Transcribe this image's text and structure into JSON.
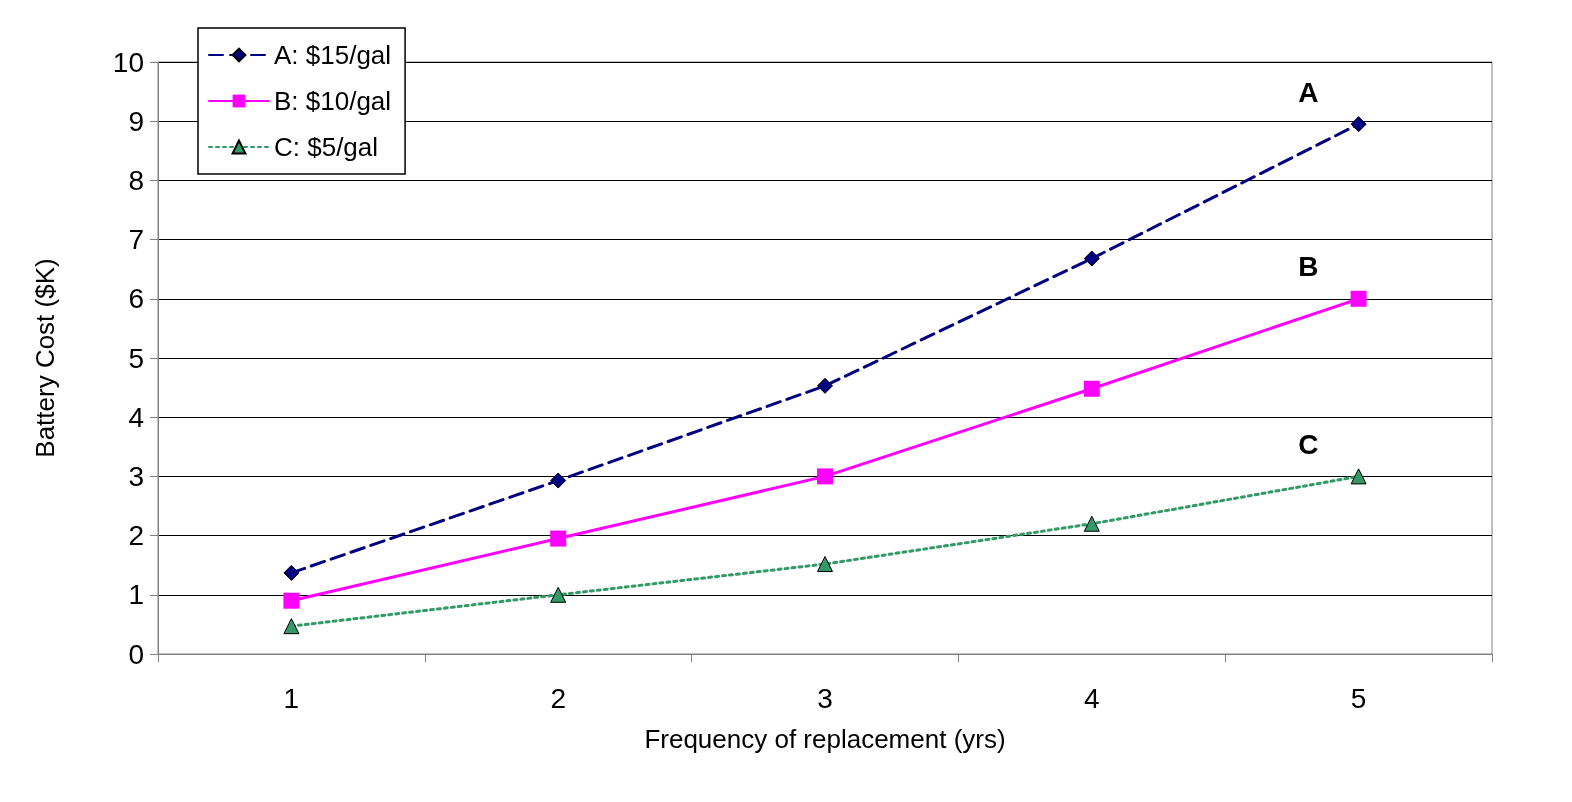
{
  "chart_data": {
    "type": "line",
    "xlabel": "Frequency of replacement (yrs)",
    "ylabel": "Battery Cost ($K)",
    "categories": [
      "1",
      "2",
      "3",
      "4",
      "5"
    ],
    "series": [
      {
        "name": "A: $15/gal",
        "color": "#000080",
        "marker": "diamond",
        "line_style": "dashed",
        "values": [
          1.37,
          2.93,
          4.53,
          6.68,
          8.95
        ]
      },
      {
        "name": "B: $10/gal",
        "color": "#ff00ff",
        "marker": "square",
        "line_style": "solid",
        "values": [
          0.9,
          1.95,
          3.0,
          4.48,
          6.0
        ]
      },
      {
        "name": "C: $5/gal",
        "color": "#339966",
        "marker": "triangle",
        "line_style": "dotted",
        "values": [
          0.47,
          1.0,
          1.52,
          2.2,
          3.0
        ]
      }
    ],
    "ylim": [
      0,
      10
    ],
    "yticks": [
      0,
      1,
      2,
      3,
      4,
      5,
      6,
      7,
      8,
      9,
      10
    ],
    "grid": "y",
    "legend": "top left",
    "annotations": [
      {
        "text": "A",
        "x": "5",
        "y": 8.95
      },
      {
        "text": "B",
        "x": "5",
        "y": 6.0
      },
      {
        "text": "C",
        "x": "5",
        "y": 3.0
      }
    ]
  }
}
